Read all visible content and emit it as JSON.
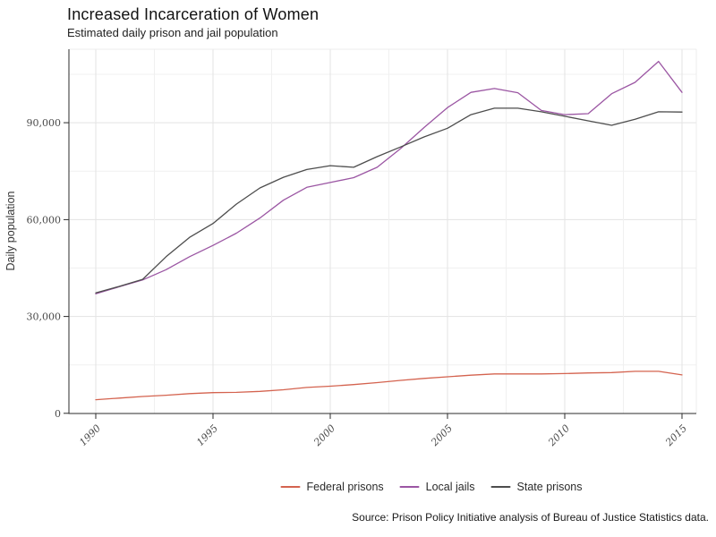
{
  "header": {
    "title": "Increased Incarceration of Women",
    "subtitle": "Estimated daily prison and jail population"
  },
  "footer": {
    "source": "Source: Prison Policy Initiative analysis of Bureau of Justice Statistics data."
  },
  "chart_data": {
    "type": "line",
    "title": "Increased Incarceration of Women",
    "subtitle": "Estimated daily prison and jail population",
    "ylabel": "Daily population",
    "xlabel": "",
    "grid": "on",
    "legend_position": "bottom-center",
    "x": [
      1990,
      1991,
      1992,
      1993,
      1994,
      1995,
      1996,
      1997,
      1998,
      1999,
      2000,
      2001,
      2002,
      2003,
      2004,
      2005,
      2006,
      2007,
      2008,
      2009,
      2010,
      2011,
      2012,
      2013,
      2014,
      2015
    ],
    "xticks": [
      1990,
      1995,
      2000,
      2005,
      2010,
      2015
    ],
    "yticks": [
      0,
      30000,
      60000,
      90000
    ],
    "ylim": [
      0,
      112600
    ],
    "xlim": [
      1988.85,
      2015.6
    ],
    "series": [
      {
        "name": "Federal prisons",
        "color": "#d4634f",
        "values": [
          4200,
          4700,
          5200,
          5600,
          6100,
          6400,
          6500,
          6800,
          7300,
          8000,
          8400,
          8900,
          9500,
          10200,
          10800,
          11300,
          11800,
          12200,
          12200,
          12200,
          12300,
          12500,
          12600,
          13000,
          13000,
          11900
        ]
      },
      {
        "name": "Local jails",
        "color": "#9b56a3",
        "values": [
          37000,
          39200,
          41300,
          44500,
          48500,
          52000,
          55800,
          60500,
          66000,
          70000,
          71500,
          73000,
          76200,
          82000,
          88500,
          94700,
          99400,
          100600,
          99300,
          93800,
          92500,
          92800,
          99000,
          102500,
          109000,
          99400
        ]
      },
      {
        "name": "State prisons",
        "color": "#4d4d4d",
        "values": [
          37300,
          39300,
          41500,
          48500,
          54500,
          58800,
          64800,
          69800,
          73100,
          75500,
          76700,
          76200,
          79500,
          82500,
          85600,
          88300,
          92500,
          94500,
          94500,
          93400,
          92000,
          90600,
          89200,
          91100,
          93400,
          93300
        ]
      }
    ]
  }
}
